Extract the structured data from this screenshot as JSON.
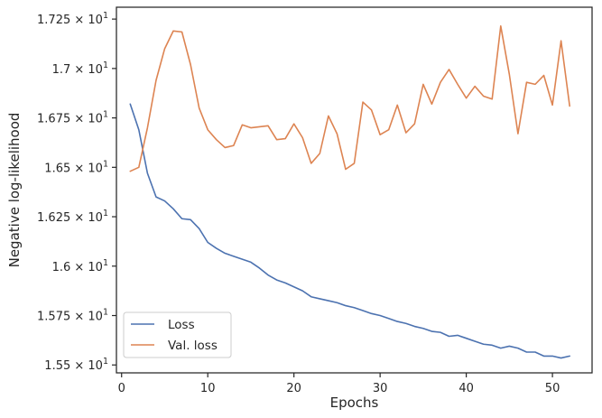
{
  "chart_data": {
    "type": "line",
    "title": "",
    "xlabel": "Epochs",
    "ylabel": "Negative log-likelihood",
    "xlim": [
      -0.6,
      54.6
    ],
    "ylim": [
      15.46,
      17.31
    ],
    "x_ticks": [
      0,
      10,
      20,
      30,
      40,
      50
    ],
    "x_tick_labels": [
      "0",
      "10",
      "20",
      "30",
      "40",
      "50"
    ],
    "y_ticks": [
      15.5,
      15.75,
      16.0,
      16.25,
      16.5,
      16.75,
      17.0,
      17.25
    ],
    "y_tick_labels": [
      {
        "mantissa": "1.55",
        "base": "10",
        "exp": "1"
      },
      {
        "mantissa": "1.575",
        "base": "10",
        "exp": "1"
      },
      {
        "mantissa": "1.6",
        "base": "10",
        "exp": "1"
      },
      {
        "mantissa": "1.625",
        "base": "10",
        "exp": "1"
      },
      {
        "mantissa": "1.65",
        "base": "10",
        "exp": "1"
      },
      {
        "mantissa": "1.675",
        "base": "10",
        "exp": "1"
      },
      {
        "mantissa": "1.7",
        "base": "10",
        "exp": "1"
      },
      {
        "mantissa": "1.725",
        "base": "10",
        "exp": "1"
      }
    ],
    "times_sign": "×",
    "grid": false,
    "legend_position": "lower-left",
    "x": [
      1,
      2,
      3,
      4,
      5,
      6,
      7,
      8,
      9,
      10,
      11,
      12,
      13,
      14,
      15,
      16,
      17,
      18,
      19,
      20,
      21,
      22,
      23,
      24,
      25,
      26,
      27,
      28,
      29,
      30,
      31,
      32,
      33,
      34,
      35,
      36,
      37,
      38,
      39,
      40,
      41,
      42,
      43,
      44,
      45,
      46,
      47,
      48,
      49,
      50,
      51,
      52
    ],
    "series": [
      {
        "name": "Loss",
        "color": "#4c72b0",
        "values": [
          16.82,
          16.69,
          16.47,
          16.35,
          16.33,
          16.29,
          16.24,
          16.235,
          16.19,
          16.12,
          16.09,
          16.065,
          16.05,
          16.035,
          16.02,
          15.99,
          15.955,
          15.93,
          15.915,
          15.895,
          15.875,
          15.845,
          15.835,
          15.825,
          15.815,
          15.8,
          15.79,
          15.775,
          15.76,
          15.75,
          15.735,
          15.72,
          15.71,
          15.695,
          15.685,
          15.67,
          15.665,
          15.645,
          15.65,
          15.635,
          15.62,
          15.605,
          15.6,
          15.585,
          15.595,
          15.585,
          15.565,
          15.565,
          15.545,
          15.545,
          15.535,
          15.545
        ]
      },
      {
        "name": "Val. loss",
        "color": "#dd8452",
        "values": [
          16.48,
          16.5,
          16.7,
          16.94,
          17.1,
          17.19,
          17.185,
          17.02,
          16.8,
          16.69,
          16.64,
          16.6,
          16.61,
          16.715,
          16.7,
          16.705,
          16.71,
          16.64,
          16.645,
          16.72,
          16.65,
          16.52,
          16.57,
          16.76,
          16.67,
          16.49,
          16.52,
          16.83,
          16.79,
          16.665,
          16.69,
          16.815,
          16.675,
          16.72,
          16.92,
          16.82,
          16.93,
          16.995,
          16.92,
          16.85,
          16.91,
          16.86,
          16.845,
          17.215,
          16.97,
          16.67,
          16.93,
          16.92,
          16.965,
          16.815,
          17.14,
          16.81
        ]
      }
    ]
  }
}
